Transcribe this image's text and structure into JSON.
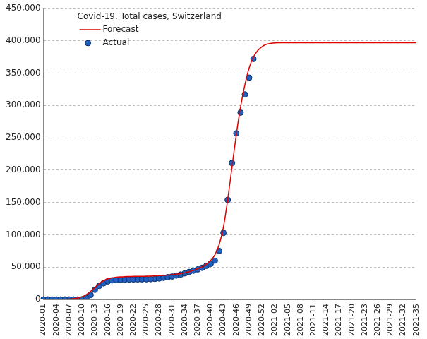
{
  "chart_data": {
    "type": "line",
    "title": "Covid-19, Total cases, Switzerland",
    "categories": [
      "2020-01",
      null,
      null,
      "2020-04",
      null,
      null,
      "2020-07",
      null,
      null,
      "2020-10",
      null,
      null,
      "2020-13",
      null,
      null,
      "2020-16",
      null,
      null,
      "2020-19",
      null,
      null,
      "2020-22",
      null,
      null,
      "2020-25",
      null,
      null,
      "2020-28",
      null,
      null,
      "2020-31",
      null,
      null,
      "2020-34",
      null,
      null,
      "2020-37",
      null,
      null,
      "2020-40",
      null,
      null,
      "2020-43",
      null,
      null,
      "2020-46",
      null,
      null,
      "2020-49",
      null,
      null,
      "2020-52",
      null,
      null,
      "2021-02",
      null,
      null,
      "2021-05",
      null,
      null,
      "2021-08",
      null,
      null,
      "2021-11",
      null,
      null,
      "2021-14",
      null,
      null,
      "2021-17",
      null,
      null,
      "2021-20",
      null,
      null,
      "2021-23",
      null,
      null,
      "2021-26",
      null,
      null,
      "2021-29",
      null,
      null,
      "2021-32",
      null,
      null,
      "2021-35"
    ],
    "series": [
      {
        "name": "Forecast",
        "color": "#e00000",
        "marker": "none",
        "line_style": "solid",
        "values": [
          0,
          0,
          0,
          0,
          0,
          200,
          600,
          1200,
          2200,
          4000,
          7500,
          12500,
          18500,
          24500,
          29000,
          32000,
          33500,
          34500,
          35000,
          35300,
          35500,
          35700,
          35800,
          35900,
          36000,
          36200,
          36500,
          36800,
          37200,
          37700,
          38300,
          39000,
          40000,
          41300,
          43000,
          45000,
          47500,
          50500,
          54500,
          60000,
          69000,
          85000,
          112000,
          155000,
          205000,
          255000,
          298000,
          332000,
          358000,
          375000,
          385000,
          391000,
          394500,
          396000,
          396800,
          397000,
          397000,
          397000,
          397000,
          397000,
          397000,
          397000,
          397000,
          397000,
          397000,
          397000,
          397000,
          397000,
          397000,
          397000,
          397000,
          397000,
          397000,
          397000,
          397000,
          397000,
          397000,
          397000,
          397000,
          397000,
          397000,
          397000,
          397000,
          397000,
          397000,
          397000,
          397000,
          397000
        ]
      },
      {
        "name": "Actual",
        "color": "#1f5fbf",
        "marker": "circle",
        "line_style": "none",
        "values": [
          0,
          0,
          0,
          0,
          0,
          0,
          0,
          0,
          50,
          300,
          2200,
          7000,
          15000,
          21000,
          25000,
          28000,
          29500,
          30000,
          30400,
          30700,
          30900,
          31000,
          31100,
          31200,
          31300,
          31500,
          31800,
          32500,
          33500,
          34500,
          35500,
          37000,
          38500,
          40500,
          42500,
          44500,
          46500,
          49000,
          52000,
          55000,
          60000,
          75000,
          103000,
          154000,
          211000,
          257000,
          289000,
          317000,
          343000,
          372000,
          null,
          null,
          null,
          null,
          null,
          null,
          null,
          null,
          null,
          null,
          null,
          null,
          null,
          null,
          null,
          null,
          null,
          null,
          null,
          null,
          null,
          null,
          null,
          null,
          null,
          null,
          null,
          null,
          null,
          null,
          null,
          null,
          null,
          null,
          null,
          null,
          null,
          null
        ]
      }
    ],
    "ylim": [
      0,
      450000
    ],
    "yticks": [
      0,
      {
        "value": 50000,
        "label": "50,000"
      },
      {
        "value": 100000,
        "label": "100,000"
      },
      {
        "value": 150000,
        "label": "150,000"
      },
      {
        "value": 200000,
        "label": "200,000"
      },
      {
        "value": 250000,
        "label": "250,000"
      },
      {
        "value": 300000,
        "label": "300,000"
      },
      {
        "value": 350000,
        "label": "350,000"
      },
      {
        "value": 400000,
        "label": "400,000"
      },
      {
        "value": 450000,
        "label": "450,000"
      }
    ],
    "grid": true,
    "legend": "upper left"
  }
}
